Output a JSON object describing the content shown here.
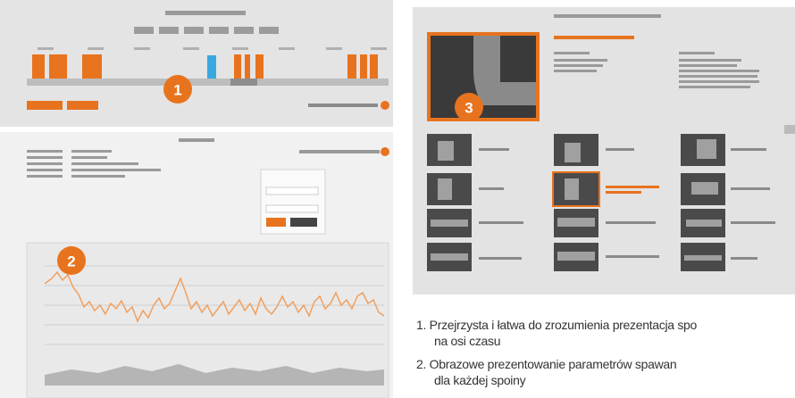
{
  "badges": [
    "1",
    "2",
    "3"
  ],
  "captions": [
    {
      "first_line": "1. Przejrzysta i łatwa do zrozumienia prezentacja spo",
      "second_line": "na osi czasu"
    },
    {
      "first_line": "2. Obrazowe prezentowanie parametrów spawan",
      "second_line": "dla każdej spoiny"
    }
  ]
}
